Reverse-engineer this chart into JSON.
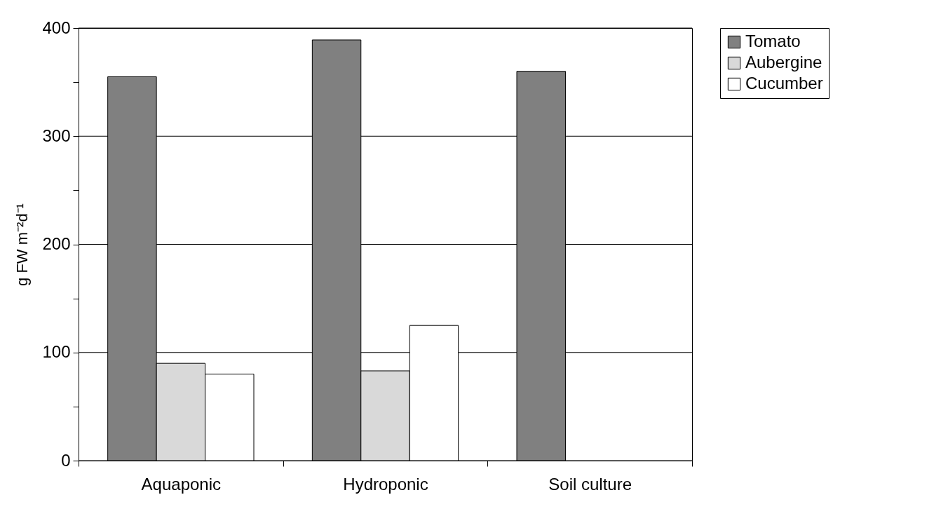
{
  "chart_data": {
    "type": "bar",
    "ylabel": "g FW m⁻²d⁻¹",
    "categories": [
      "Aquaponic",
      "Hydroponic",
      "Soil culture"
    ],
    "series": [
      {
        "name": "Tomato",
        "color": "#808080",
        "values": [
          355,
          389,
          360
        ]
      },
      {
        "name": "Aubergine",
        "color": "#d9d9d9",
        "values": [
          90,
          83,
          null
        ]
      },
      {
        "name": "Cucumber",
        "color": "#ffffff",
        "values": [
          80,
          125,
          null
        ]
      }
    ],
    "ylim": [
      0,
      400
    ],
    "yticks": [
      0,
      {
        "value": 50,
        "label": null
      },
      100,
      {
        "value": 150,
        "label": null
      },
      200,
      {
        "value": 250,
        "label": null
      },
      300,
      {
        "value": 350,
        "label": null
      },
      400
    ],
    "grid": "y",
    "legend": "right"
  }
}
